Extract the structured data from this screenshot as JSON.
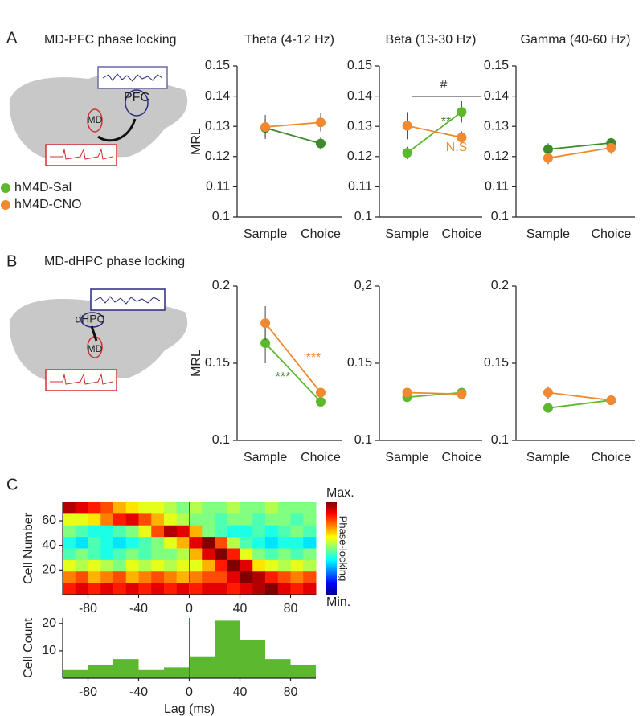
{
  "figure": {
    "panel_labels": [
      "A",
      "B",
      "C"
    ],
    "panel_titles": [
      "MD-PFC phase locking",
      "MD-dHPC phase locking"
    ],
    "diagram_a": [
      "PFC",
      "MD"
    ],
    "diagram_b": [
      "dHPC",
      "MD"
    ]
  },
  "chart_data": [
    {
      "type": "line",
      "title": "Theta (4-12 Hz)",
      "ylabel": "MRL",
      "categories": [
        "Sample",
        "Choice"
      ],
      "series": [
        {
          "name": "hM4D-Sal",
          "color": "#3d8b2a",
          "values": [
            0.1295,
            0.1243
          ],
          "errors": [
            0.003,
            0.002
          ]
        },
        {
          "name": "hM4D-CNO",
          "color": "#f0892f",
          "values": [
            0.1298,
            0.1313
          ],
          "errors": [
            0.004,
            0.003
          ]
        }
      ],
      "ylim": [
        0.1,
        0.15
      ],
      "yticks": [
        0.1,
        0.11,
        0.12,
        0.13,
        0.14,
        0.15
      ],
      "annotations": []
    },
    {
      "type": "line",
      "title": "Beta (13-30 Hz)",
      "categories": [
        "Sample",
        "Choice"
      ],
      "series": [
        {
          "name": "hM4D-Sal",
          "color": "#5cb82e",
          "values": [
            0.1212,
            0.1348
          ],
          "errors": [
            0.002,
            0.0035
          ]
        },
        {
          "name": "hM4D-CNO",
          "color": "#f0892f",
          "values": [
            0.1302,
            0.1263
          ],
          "errors": [
            0.0045,
            0.002
          ]
        }
      ],
      "ylim": [
        0.1,
        0.15
      ],
      "yticks": [
        0.1,
        0.11,
        0.12,
        0.13,
        0.14,
        0.15
      ],
      "annotations": [
        {
          "text": "#",
          "color": "#333333"
        },
        {
          "text": "**",
          "color": "#3d8b2a"
        },
        {
          "text": "N.S",
          "color": "#f0892f"
        }
      ]
    },
    {
      "type": "line",
      "title": "Gamma (40-60 Hz)",
      "categories": [
        "Sample",
        "Choice"
      ],
      "series": [
        {
          "name": "hM4D-Sal",
          "color": "#3d8b2a",
          "values": [
            0.1224,
            0.1245
          ],
          "errors": [
            0.002,
            0.0015
          ]
        },
        {
          "name": "hM4D-CNO",
          "color": "#f0892f",
          "values": [
            0.1195,
            0.1229
          ],
          "errors": [
            0.002,
            0.002
          ]
        }
      ],
      "ylim": [
        0.1,
        0.15
      ],
      "yticks": [
        0.1,
        0.11,
        0.12,
        0.13,
        0.14,
        0.15
      ],
      "annotations": []
    },
    {
      "type": "line",
      "ylabel": "MRL",
      "categories": [
        "Sample",
        "Choice"
      ],
      "series": [
        {
          "name": "hM4D-Sal",
          "color": "#5cb82e",
          "values": [
            0.163,
            0.125
          ],
          "errors": [
            0.013,
            0.002
          ]
        },
        {
          "name": "hM4D-CNO",
          "color": "#f0892f",
          "values": [
            0.176,
            0.131
          ],
          "errors": [
            0.011,
            0.002
          ]
        }
      ],
      "ylim": [
        0.1,
        0.2
      ],
      "yticks": [
        0.1,
        0.15,
        0.2
      ],
      "annotations": [
        {
          "text": "***",
          "color": "#f0892f"
        },
        {
          "text": "***",
          "color": "#3d8b2a"
        }
      ]
    },
    {
      "type": "line",
      "categories": [
        "Sample",
        "Choice"
      ],
      "series": [
        {
          "name": "hM4D-Sal",
          "color": "#5cb82e",
          "values": [
            0.128,
            0.131
          ],
          "errors": [
            0.002,
            0.002
          ]
        },
        {
          "name": "hM4D-CNO",
          "color": "#f0892f",
          "values": [
            0.131,
            0.13
          ],
          "errors": [
            0.003,
            0.003
          ]
        }
      ],
      "ylim": [
        0.1,
        0.2
      ],
      "yticks": [
        0.1,
        0.15,
        {
          "value": 0.2,
          "label": "0,2"
        }
      ],
      "annotations": []
    },
    {
      "type": "line",
      "categories": [
        "Sample",
        "Choice"
      ],
      "series": [
        {
          "name": "hM4D-Sal",
          "color": "#5cb82e",
          "values": [
            0.121,
            0.126
          ],
          "errors": [
            0.001,
            0.001
          ]
        },
        {
          "name": "hM4D-CNO",
          "color": "#f0892f",
          "values": [
            0.131,
            0.126
          ],
          "errors": [
            0.004,
            0.001
          ]
        }
      ],
      "ylim": [
        0.1,
        0.2
      ],
      "yticks": [
        0.1,
        0.15,
        0.2
      ],
      "annotations": []
    },
    {
      "type": "heatmap",
      "ylabel": "Cell Number",
      "xlim": [
        -100,
        100
      ],
      "ylim": [
        0,
        75
      ],
      "xticks": [
        -80,
        -40,
        0,
        40,
        80
      ],
      "yticks": [
        20,
        40,
        60
      ],
      "colorbar_labels": [
        "Max.",
        "Min."
      ],
      "colorbar_title": "Phase-locking",
      "vline": 0,
      "vline_color": "#e03020",
      "values": [
        [
          0.95,
          0.9,
          0.85,
          0.8,
          0.7,
          0.65,
          0.6,
          0.6,
          0.55,
          0.5,
          0.55,
          0.5,
          0.5,
          0.55,
          0.5,
          0.5,
          0.55,
          0.5,
          0.5,
          0.5
        ],
        [
          0.6,
          0.6,
          0.65,
          0.75,
          0.85,
          0.9,
          0.8,
          0.7,
          0.6,
          0.55,
          0.5,
          0.5,
          0.45,
          0.5,
          0.5,
          0.45,
          0.5,
          0.5,
          0.45,
          0.5
        ],
        [
          0.5,
          0.45,
          0.4,
          0.4,
          0.45,
          0.5,
          0.6,
          0.8,
          0.95,
          0.9,
          0.7,
          0.5,
          0.45,
          0.4,
          0.4,
          0.45,
          0.4,
          0.45,
          0.5,
          0.45
        ],
        [
          0.4,
          0.35,
          0.45,
          0.4,
          0.35,
          0.4,
          0.45,
          0.5,
          0.6,
          0.7,
          0.9,
          1.0,
          0.8,
          0.55,
          0.45,
          0.4,
          0.35,
          0.4,
          0.4,
          0.35
        ],
        [
          0.45,
          0.5,
          0.45,
          0.4,
          0.45,
          0.5,
          0.45,
          0.5,
          0.5,
          0.55,
          0.7,
          0.9,
          1.0,
          0.85,
          0.6,
          0.5,
          0.45,
          0.5,
          0.45,
          0.5
        ],
        [
          0.6,
          0.55,
          0.6,
          0.55,
          0.5,
          0.6,
          0.55,
          0.6,
          0.55,
          0.6,
          0.6,
          0.7,
          0.85,
          1.0,
          0.9,
          0.65,
          0.6,
          0.55,
          0.6,
          0.55
        ],
        [
          0.75,
          0.8,
          0.7,
          0.75,
          0.8,
          0.7,
          0.75,
          0.8,
          0.75,
          0.7,
          0.75,
          0.8,
          0.8,
          0.9,
          1.0,
          0.95,
          0.85,
          0.8,
          0.75,
          0.8
        ],
        [
          0.85,
          0.9,
          0.85,
          0.9,
          0.85,
          0.9,
          0.85,
          0.9,
          0.85,
          0.9,
          0.85,
          0.9,
          0.9,
          0.85,
          0.9,
          0.95,
          1.0,
          0.9,
          0.85,
          0.9
        ]
      ]
    },
    {
      "type": "histogram",
      "ylabel": "Cell Count",
      "xlabel": "Lag (ms)",
      "bins": [
        -100,
        -80,
        -60,
        -40,
        -20,
        0,
        20,
        40,
        60,
        80,
        100
      ],
      "counts": [
        3,
        5,
        7,
        3,
        4,
        8,
        21,
        14,
        7,
        5
      ],
      "color": "#5cb82e",
      "xlim": [
        -100,
        100
      ],
      "ylim": [
        0,
        22
      ],
      "xticks": [
        -80,
        -40,
        0,
        40,
        80
      ],
      "yticks": [
        10,
        20
      ],
      "vline": 0,
      "vline_color": "#e03020"
    }
  ]
}
